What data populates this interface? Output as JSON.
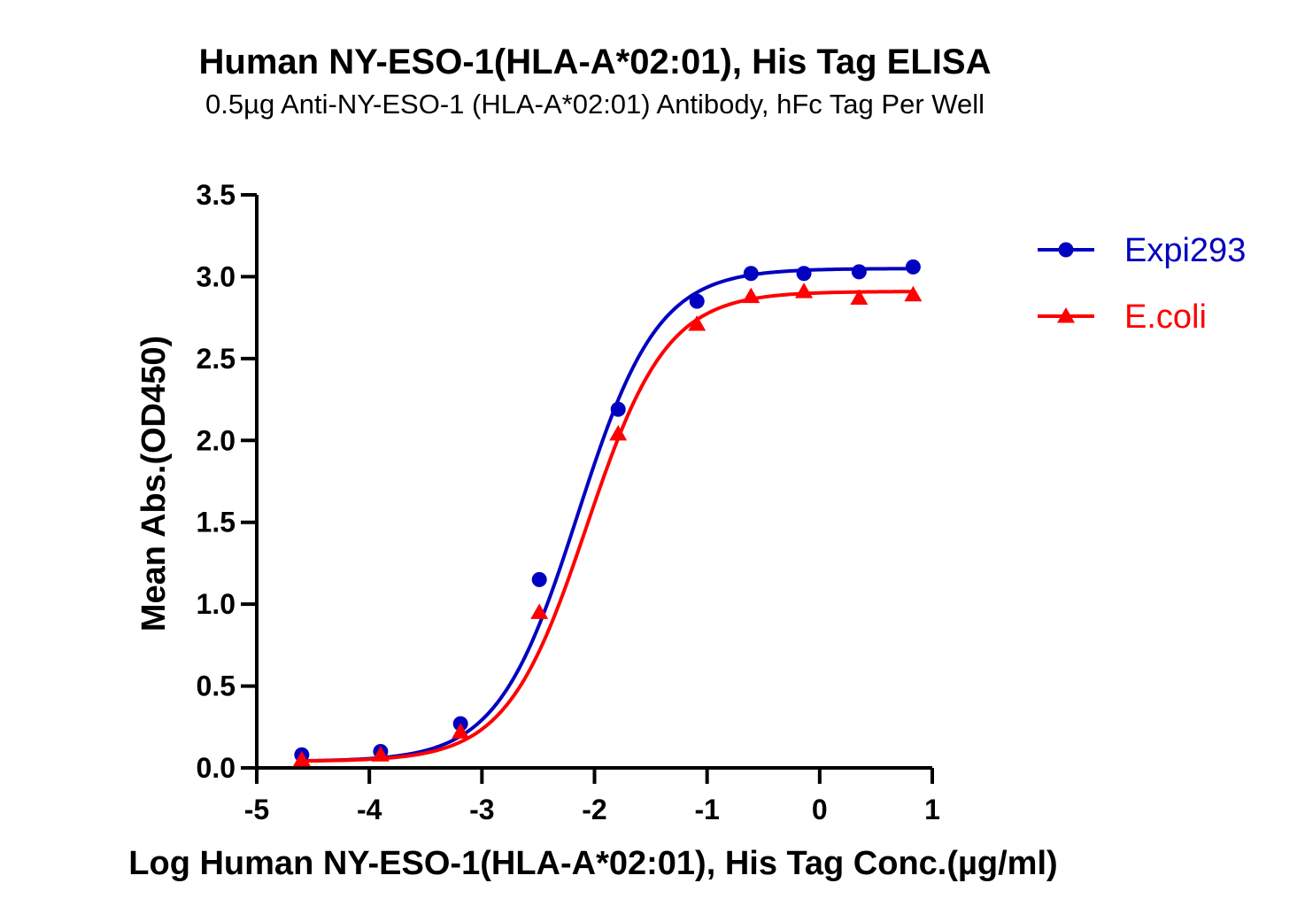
{
  "chart_data": {
    "type": "line",
    "title": "Human NY-ESO-1(HLA-A*02:01), His Tag ELISA",
    "subtitle": "0.5µg Anti-NY-ESO-1 (HLA-A*02:01) Antibody, hFc Tag Per Well",
    "xlabel": "Log Human NY-ESO-1(HLA-A*02:01), His Tag Conc.(µg/ml)",
    "ylabel": "Mean Abs.(OD450)",
    "xlim": [
      -5,
      1
    ],
    "ylim": [
      0,
      3.5
    ],
    "x_ticks": [
      -5,
      -4,
      -3,
      -2,
      -1,
      0,
      1
    ],
    "y_ticks": [
      0.0,
      0.5,
      1.0,
      1.5,
      2.0,
      2.5,
      3.0,
      3.5
    ],
    "x_tick_labels": [
      "-5",
      "-4",
      "-3",
      "-2",
      "-1",
      "0",
      "1"
    ],
    "y_tick_labels": [
      "0.0",
      "0.5",
      "1.0",
      "1.5",
      "2.0",
      "2.5",
      "3.0",
      "3.5"
    ],
    "grid": false,
    "legend_position": "top-right",
    "series": [
      {
        "name": "Expi293",
        "color": "#0000C0",
        "marker": "circle",
        "x": [
          -4.6,
          -3.9,
          -3.19,
          -2.49,
          -1.79,
          -1.09,
          -0.61,
          -0.14,
          0.35,
          0.83
        ],
        "y": [
          0.08,
          0.1,
          0.27,
          1.15,
          2.19,
          2.85,
          3.02,
          3.02,
          3.03,
          3.06
        ],
        "fit": {
          "bottom": 0.04,
          "top": 3.05,
          "logEC50": -2.15,
          "hill": 1.22
        }
      },
      {
        "name": "E.coli",
        "color": "#FF0000",
        "marker": "triangle",
        "x": [
          -4.6,
          -3.9,
          -3.19,
          -2.49,
          -1.79,
          -1.09,
          -0.61,
          -0.14,
          0.35,
          0.83
        ],
        "y": [
          0.05,
          0.08,
          0.22,
          0.95,
          2.04,
          2.71,
          2.88,
          2.91,
          2.87,
          2.89
        ],
        "fit": {
          "bottom": 0.04,
          "top": 2.91,
          "logEC50": -2.07,
          "hill": 1.22
        }
      }
    ]
  }
}
